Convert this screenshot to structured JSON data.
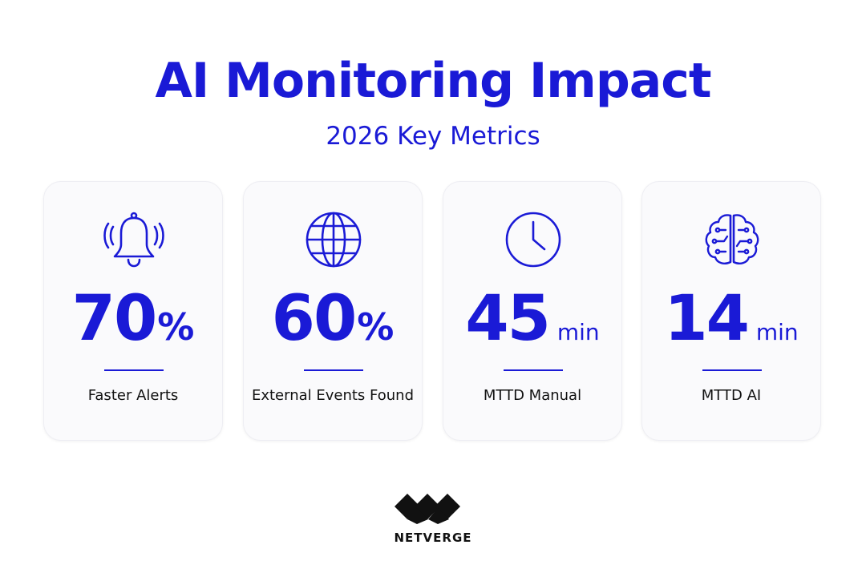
{
  "header": {
    "title": "AI Monitoring Impact",
    "subtitle": "2026 Key Metrics"
  },
  "colors": {
    "accent": "#1a1ad6",
    "card_bg": "#fafafc",
    "label_text": "#111111"
  },
  "cards": [
    {
      "icon": "bell-icon",
      "value": "70",
      "unit": "%",
      "label": "Faster Alerts"
    },
    {
      "icon": "globe-icon",
      "value": "60",
      "unit": "%",
      "label": "External Events Found"
    },
    {
      "icon": "clock-icon",
      "value": "45",
      "unit": "min",
      "label": "MTTD Manual"
    },
    {
      "icon": "brain-circuit-icon",
      "value": "14",
      "unit": "min",
      "label": "MTTD AI"
    }
  ],
  "logo": {
    "text": "NETVERGE"
  }
}
